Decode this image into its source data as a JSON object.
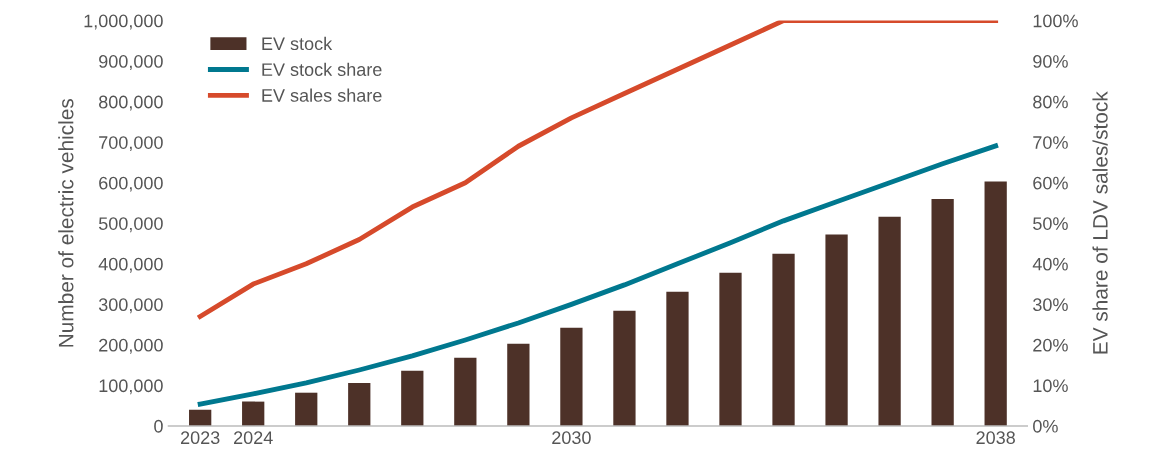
{
  "chart_data": {
    "type": "bar",
    "categories": [
      "2023",
      "2024",
      null,
      null,
      null,
      null,
      null,
      "2030",
      null,
      null,
      null,
      null,
      null,
      null,
      null,
      "2038"
    ],
    "ylabel": "Number of electric vehicles",
    "y2label": "EV share of LDV sales/stock",
    "ylim": [
      0,
      1000000
    ],
    "yticks": [
      {
        "value": 0,
        "label": "0"
      },
      {
        "value": 100000,
        "label": "100,000"
      },
      {
        "value": 200000,
        "label": "200,000"
      },
      {
        "value": 300000,
        "label": "300,000"
      },
      {
        "value": 400000,
        "label": "400,000"
      },
      {
        "value": 500000,
        "label": "500,000"
      },
      {
        "value": 600000,
        "label": "600,000"
      },
      {
        "value": 700000,
        "label": "700,000"
      },
      {
        "value": 800000,
        "label": "800,000"
      },
      {
        "value": 900000,
        "label": "900,000"
      },
      {
        "value": 1000000,
        "label": "1,000,000"
      }
    ],
    "y2lim": [
      0,
      100
    ],
    "y2ticks": [
      {
        "value": 0,
        "label": "0%"
      },
      {
        "value": 10,
        "label": "10%"
      },
      {
        "value": 20,
        "label": "20%"
      },
      {
        "value": 30,
        "label": "30%"
      },
      {
        "value": 40,
        "label": "40%"
      },
      {
        "value": 50,
        "label": "50%"
      },
      {
        "value": 60,
        "label": "60%"
      },
      {
        "value": 70,
        "label": "70%"
      },
      {
        "value": 80,
        "label": "80%"
      },
      {
        "value": 90,
        "label": "90%"
      },
      {
        "value": 100,
        "label": "100%"
      }
    ],
    "grid": false,
    "legend": "top left",
    "series": [
      {
        "name": "EV stock",
        "color": "#4d3128",
        "values": [
          40000,
          60000,
          82000,
          106000,
          136000,
          168000,
          203000,
          242000,
          284000,
          331000,
          378000,
          425000,
          472000,
          516000,
          560000,
          603000
        ]
      },
      {
        "name": "EV stock share",
        "type": "line",
        "axis": "y2",
        "color": "#00788f",
        "values": [
          5.4,
          7.9,
          10.6,
          13.8,
          17.3,
          21.2,
          25.4,
          30,
          34.8,
          40,
          45.2,
          50.6,
          55.3,
          60,
          64.7,
          69.1
        ]
      },
      {
        "name": "EV sales share",
        "type": "line",
        "axis": "y2",
        "color": "#d64a2b",
        "values": [
          27,
          35,
          40,
          46,
          54,
          60,
          69,
          76,
          82,
          88,
          94,
          100,
          100,
          100,
          100,
          100
        ]
      }
    ]
  }
}
